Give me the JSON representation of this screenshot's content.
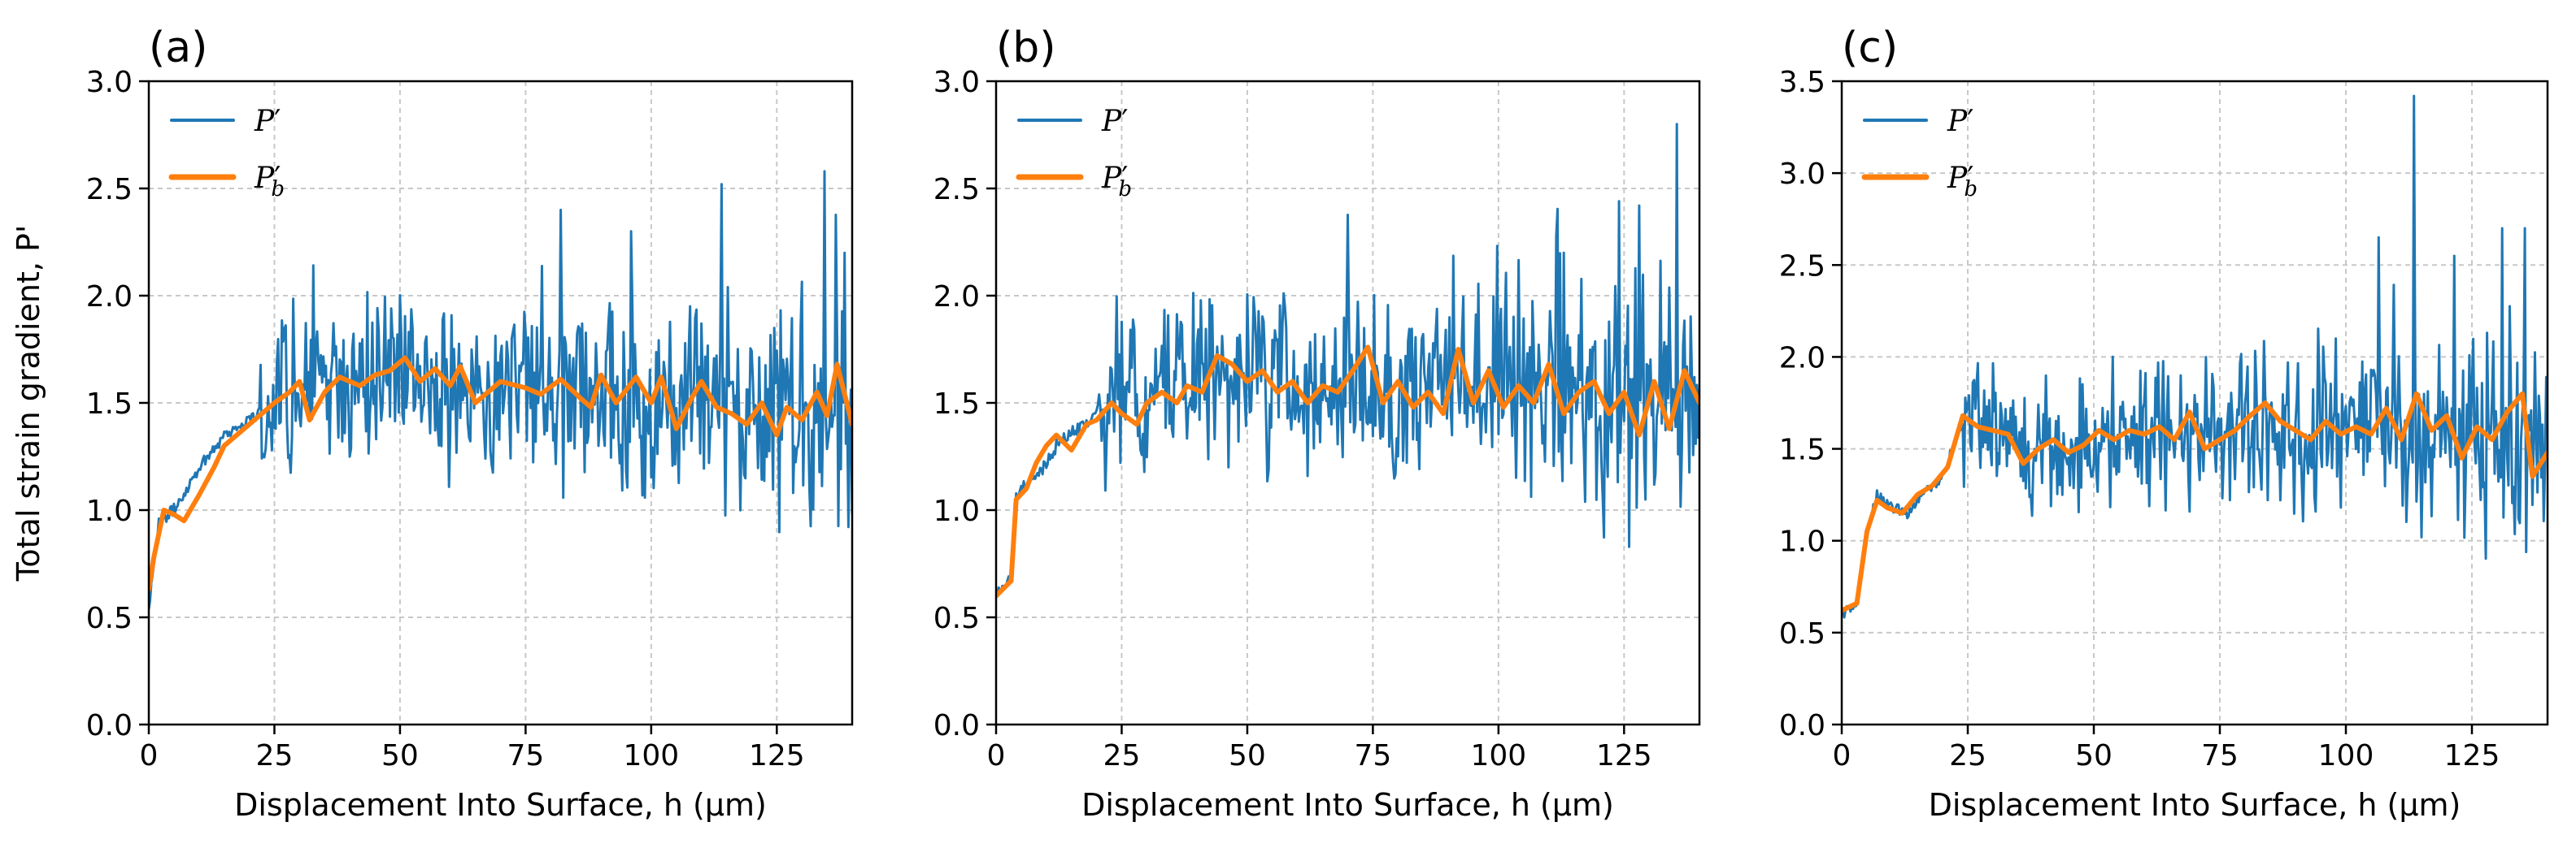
{
  "chart_data": [
    {
      "type": "line",
      "panel": "(a)",
      "ylabel": "Total strain gradient, P'",
      "xlabel": "Displacement Into Surface, h (µm)",
      "xlim": [
        0,
        140
      ],
      "ylim": [
        0,
        3.0
      ],
      "xticks": [
        0,
        25,
        50,
        75,
        100,
        125
      ],
      "yticks": [
        0.0,
        0.5,
        1.0,
        1.5,
        2.0,
        2.5,
        3.0
      ],
      "xtick_labels": [
        "0",
        "25",
        "50",
        "75",
        "100",
        "125"
      ],
      "ytick_labels": [
        "0.0",
        "0.5",
        "1.0",
        "1.5",
        "2.0",
        "2.5",
        "3.0"
      ],
      "grid": true,
      "legend": "top-left",
      "series": [
        {
          "name": "P′",
          "label_main": "P",
          "label_sup": "′",
          "label_sub": "",
          "color": "#1f77b4",
          "style": "noisy",
          "x": [
            0,
            2,
            5,
            10,
            15,
            20,
            25,
            30,
            35,
            40,
            45,
            50,
            55,
            60,
            65,
            70,
            75,
            80,
            85,
            90,
            95,
            100,
            105,
            110,
            115,
            120,
            125,
            130,
            135,
            140
          ],
          "values": [
            0.55,
            0.95,
            1.0,
            1.2,
            1.35,
            1.42,
            1.5,
            1.55,
            1.58,
            1.6,
            1.62,
            1.65,
            1.6,
            1.57,
            1.55,
            1.55,
            1.55,
            1.55,
            1.55,
            1.5,
            1.52,
            1.52,
            1.48,
            1.5,
            1.5,
            1.45,
            1.42,
            1.45,
            1.45,
            1.42
          ],
          "noise_start": 22,
          "noise_amp": [
            0.35,
            0.6
          ],
          "n_points": 560,
          "spikes": [
            [
              114,
              2.52
            ],
            [
              134.5,
              2.58
            ],
            [
              138.5,
              2.2
            ],
            [
              96,
              2.3
            ],
            [
              82,
              2.4
            ]
          ]
        },
        {
          "name": "P′_b",
          "label_main": "P",
          "label_sup": "′",
          "label_sub": "b",
          "color": "#ff7f0e",
          "style": "smooth",
          "x": [
            0,
            1,
            3,
            5,
            7,
            10,
            13,
            15,
            20,
            25,
            28,
            30,
            32,
            35,
            38,
            42,
            45,
            48,
            51,
            54,
            57,
            60,
            62,
            65,
            70,
            75,
            78,
            82,
            86,
            88,
            90,
            93,
            97,
            100,
            102,
            105,
            108,
            110,
            113,
            116,
            119,
            122,
            125,
            127,
            130,
            133,
            135,
            137,
            140
          ],
          "values": [
            0.63,
            0.78,
            1.0,
            0.98,
            0.95,
            1.07,
            1.2,
            1.3,
            1.4,
            1.5,
            1.55,
            1.6,
            1.42,
            1.55,
            1.62,
            1.58,
            1.63,
            1.65,
            1.71,
            1.6,
            1.66,
            1.58,
            1.67,
            1.5,
            1.6,
            1.57,
            1.54,
            1.61,
            1.52,
            1.48,
            1.63,
            1.5,
            1.62,
            1.5,
            1.62,
            1.38,
            1.52,
            1.6,
            1.48,
            1.45,
            1.4,
            1.5,
            1.35,
            1.48,
            1.42,
            1.55,
            1.44,
            1.68,
            1.4
          ]
        }
      ]
    },
    {
      "type": "line",
      "panel": "(b)",
      "ylabel": "",
      "xlabel": "Displacement Into Surface, h (µm)",
      "xlim": [
        0,
        140
      ],
      "ylim": [
        0,
        3.0
      ],
      "xticks": [
        0,
        25,
        50,
        75,
        100,
        125
      ],
      "yticks": [
        0.0,
        0.5,
        1.0,
        1.5,
        2.0,
        2.5,
        3.0
      ],
      "xtick_labels": [
        "0",
        "25",
        "50",
        "75",
        "100",
        "125"
      ],
      "ytick_labels": [
        "0.0",
        "0.5",
        "1.0",
        "1.5",
        "2.0",
        "2.5",
        "3.0"
      ],
      "grid": true,
      "legend": "top-left",
      "series": [
        {
          "name": "P′",
          "label_main": "P",
          "label_sup": "′",
          "label_sub": "",
          "color": "#1f77b4",
          "style": "noisy",
          "x": [
            0,
            3,
            4,
            5,
            8,
            12,
            16,
            20,
            25,
            30,
            35,
            40,
            45,
            50,
            55,
            60,
            65,
            70,
            75,
            80,
            85,
            90,
            95,
            100,
            105,
            110,
            115,
            120,
            125,
            130,
            135,
            140
          ],
          "values": [
            0.6,
            0.7,
            1.05,
            1.1,
            1.15,
            1.3,
            1.38,
            1.45,
            1.5,
            1.52,
            1.55,
            1.6,
            1.65,
            1.65,
            1.6,
            1.57,
            1.6,
            1.62,
            1.58,
            1.55,
            1.6,
            1.58,
            1.55,
            1.58,
            1.55,
            1.55,
            1.52,
            1.5,
            1.48,
            1.5,
            1.5,
            1.5
          ],
          "noise_start": 20,
          "noise_amp": [
            0.35,
            0.6
          ],
          "n_points": 560,
          "spikes": [
            [
              124,
              2.44
            ],
            [
              128,
              2.42
            ],
            [
              135.5,
              2.8
            ],
            [
              113,
              2.2
            ]
          ]
        },
        {
          "name": "P′_b",
          "label_main": "P",
          "label_sup": "′",
          "label_sub": "b",
          "color": "#ff7f0e",
          "style": "smooth",
          "x": [
            0,
            3,
            4,
            6,
            8,
            10,
            12,
            15,
            18,
            20,
            23,
            25,
            28,
            30,
            33,
            36,
            38,
            41,
            44,
            47,
            50,
            53,
            56,
            59,
            62,
            65,
            68,
            71,
            74,
            77,
            80,
            83,
            86,
            89,
            92,
            95,
            98,
            101,
            104,
            107,
            110,
            113,
            116,
            119,
            122,
            125,
            128,
            131,
            134,
            137,
            140
          ],
          "values": [
            0.6,
            0.67,
            1.05,
            1.1,
            1.22,
            1.3,
            1.35,
            1.28,
            1.4,
            1.42,
            1.5,
            1.45,
            1.4,
            1.5,
            1.55,
            1.5,
            1.58,
            1.55,
            1.72,
            1.68,
            1.6,
            1.65,
            1.55,
            1.6,
            1.5,
            1.58,
            1.55,
            1.65,
            1.76,
            1.5,
            1.6,
            1.48,
            1.55,
            1.45,
            1.75,
            1.5,
            1.65,
            1.48,
            1.58,
            1.5,
            1.68,
            1.45,
            1.55,
            1.6,
            1.45,
            1.55,
            1.35,
            1.6,
            1.38,
            1.65,
            1.5
          ]
        }
      ]
    },
    {
      "type": "line",
      "panel": "(c)",
      "ylabel": "",
      "xlabel": "Displacement Into Surface, h (µm)",
      "xlim": [
        0,
        140
      ],
      "ylim": [
        0,
        3.5
      ],
      "xticks": [
        0,
        25,
        50,
        75,
        100,
        125
      ],
      "yticks": [
        0.0,
        0.5,
        1.0,
        1.5,
        2.0,
        2.5,
        3.0,
        3.5
      ],
      "xtick_labels": [
        "0",
        "25",
        "50",
        "75",
        "100",
        "125"
      ],
      "ytick_labels": [
        "0.0",
        "0.5",
        "1.0",
        "1.5",
        "2.0",
        "2.5",
        "3.0",
        "3.5"
      ],
      "grid": true,
      "legend": "top-left",
      "series": [
        {
          "name": "P′",
          "label_main": "P",
          "label_sup": "′",
          "label_sub": "",
          "color": "#1f77b4",
          "style": "noisy",
          "x": [
            0,
            3,
            5,
            7,
            10,
            13,
            16,
            20,
            24,
            27,
            30,
            35,
            40,
            45,
            50,
            55,
            60,
            65,
            70,
            75,
            80,
            85,
            90,
            95,
            100,
            105,
            110,
            115,
            120,
            125,
            130,
            135,
            140
          ],
          "values": [
            0.6,
            0.65,
            1.05,
            1.25,
            1.18,
            1.15,
            1.25,
            1.35,
            1.65,
            1.65,
            1.6,
            1.55,
            1.5,
            1.52,
            1.52,
            1.55,
            1.58,
            1.58,
            1.6,
            1.58,
            1.6,
            1.6,
            1.62,
            1.6,
            1.6,
            1.62,
            1.6,
            1.6,
            1.58,
            1.55,
            1.55,
            1.55,
            1.55
          ],
          "noise_start": 24,
          "noise_amp": [
            0.3,
            0.65
          ],
          "n_points": 560,
          "spikes": [
            [
              113.5,
              3.42
            ],
            [
              106.5,
              2.65
            ],
            [
              121.5,
              2.55
            ],
            [
              131,
              2.7
            ],
            [
              135.5,
              2.7
            ],
            [
              98,
              2.1
            ]
          ]
        },
        {
          "name": "P′_b",
          "label_main": "P",
          "label_sup": "′",
          "label_sub": "b",
          "color": "#ff7f0e",
          "style": "smooth",
          "x": [
            0,
            3,
            5,
            7,
            9,
            12,
            15,
            18,
            21,
            24,
            27,
            30,
            33,
            36,
            39,
            42,
            45,
            48,
            51,
            54,
            57,
            60,
            63,
            66,
            69,
            72,
            75,
            78,
            81,
            84,
            87,
            90,
            93,
            96,
            99,
            102,
            105,
            108,
            111,
            114,
            117,
            120,
            123,
            126,
            129,
            132,
            135,
            137,
            140
          ],
          "values": [
            0.62,
            0.66,
            1.05,
            1.22,
            1.18,
            1.15,
            1.25,
            1.3,
            1.4,
            1.68,
            1.62,
            1.6,
            1.58,
            1.42,
            1.5,
            1.55,
            1.48,
            1.52,
            1.6,
            1.55,
            1.6,
            1.58,
            1.62,
            1.55,
            1.7,
            1.5,
            1.55,
            1.6,
            1.68,
            1.75,
            1.65,
            1.6,
            1.55,
            1.65,
            1.58,
            1.62,
            1.58,
            1.72,
            1.55,
            1.8,
            1.6,
            1.68,
            1.45,
            1.62,
            1.55,
            1.7,
            1.8,
            1.35,
            1.48
          ]
        }
      ]
    }
  ]
}
